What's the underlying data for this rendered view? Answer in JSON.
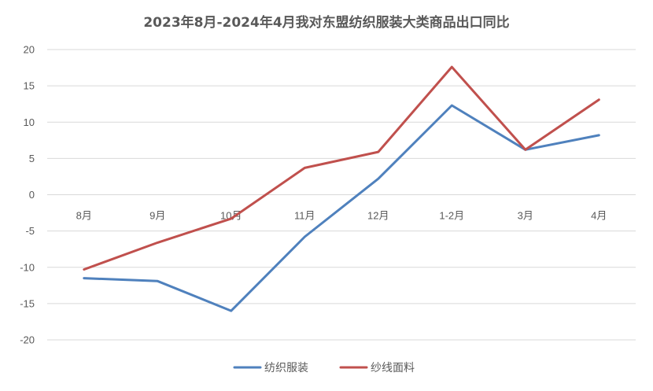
{
  "chart_data": {
    "type": "line",
    "title": "2023年8月-2024年4月我对东盟纺织服装大类商品出口同比",
    "xlabel": "",
    "ylabel": "",
    "categories": [
      "8月",
      "9月",
      "10月",
      "11月",
      "12月",
      "1-2月",
      "3月",
      "4月"
    ],
    "ylim": [
      -20,
      20
    ],
    "yticks": [
      20,
      15,
      10,
      5,
      0,
      -5,
      -10,
      -15,
      -20
    ],
    "grid": true,
    "legend": "bottom",
    "series": [
      {
        "name": "纺织服装",
        "color": "#4f81bd",
        "values": [
          -11.5,
          -11.9,
          -16.0,
          -5.8,
          2.2,
          12.3,
          6.2,
          8.2
        ]
      },
      {
        "name": "纱线面料",
        "color": "#c0504d",
        "values": [
          -10.3,
          -6.6,
          -3.3,
          3.7,
          5.9,
          17.6,
          6.2,
          13.1
        ]
      }
    ]
  }
}
